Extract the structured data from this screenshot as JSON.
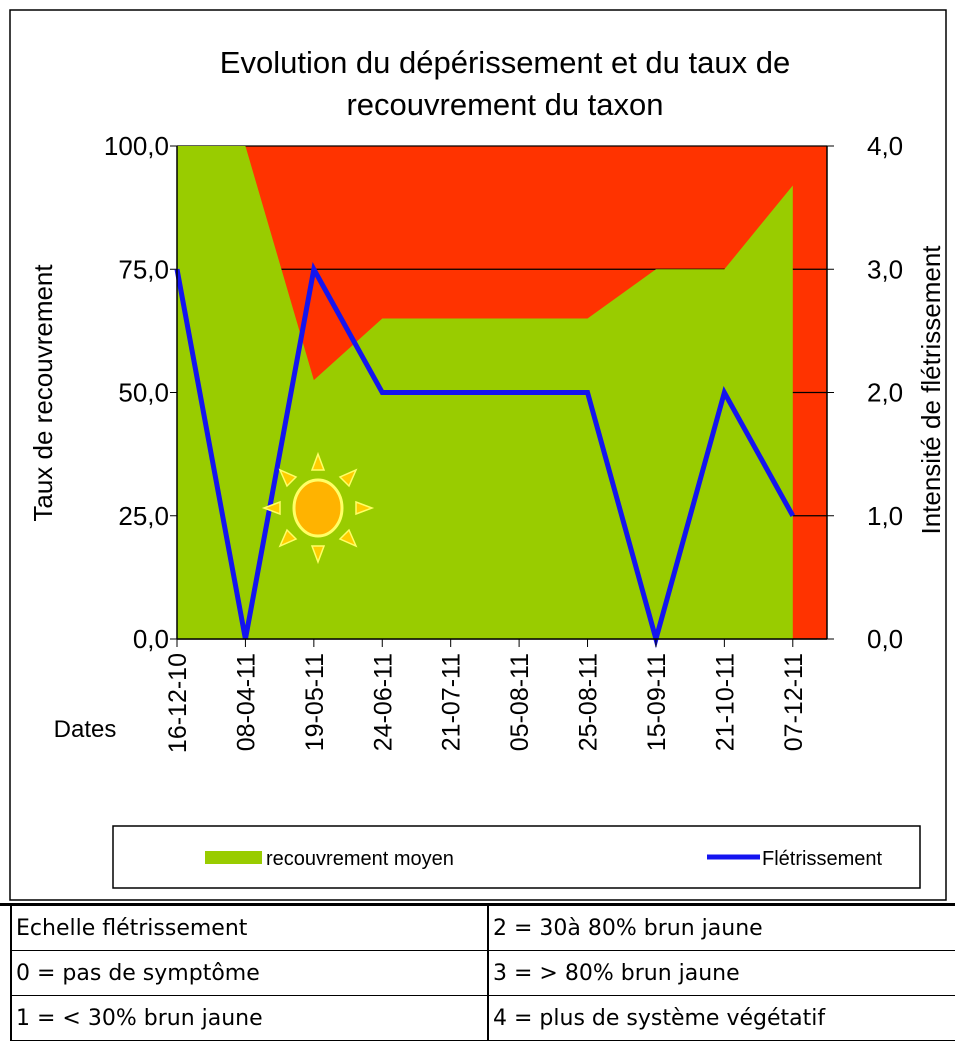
{
  "chart_data": {
    "type": "area_line",
    "title": [
      "Evolution du dépérissement et du taux de",
      "recouvrement du taxon"
    ],
    "ylabel": "Taux de recouvrement",
    "y2label": "Intensité de flétrissement",
    "xlabel": "Dates",
    "categories": [
      "16-12-10",
      "08-04-11",
      "19-05-11",
      "24-06-11",
      "21-07-11",
      "05-08-11",
      "25-08-11",
      "15-09-11",
      "21-10-11",
      "07-12-11"
    ],
    "series": [
      {
        "name": "recouvrement moyen",
        "color": "#99cc00",
        "kind": "area",
        "values": [
          100,
          100,
          52.5,
          65,
          65,
          65,
          65,
          75,
          75,
          92
        ]
      },
      {
        "name": "Flétrissement",
        "color": "#1414f0",
        "kind": "line",
        "axis": "y2",
        "values": [
          3,
          0,
          3,
          2,
          2,
          2,
          2,
          0,
          2,
          1
        ]
      }
    ],
    "plot_background": "#ff3300",
    "ylim": [
      0,
      100
    ],
    "yticks": [
      {
        "value": 0,
        "label": "0,0"
      },
      {
        "value": 25,
        "label": "25,0"
      },
      {
        "value": 50,
        "label": "50,0"
      },
      {
        "value": 75,
        "label": "75,0"
      },
      {
        "value": 100,
        "label": "100,0"
      }
    ],
    "y2lim": [
      0,
      4
    ],
    "y2ticks": [
      {
        "value": 0,
        "label": "0,0"
      },
      {
        "value": 1,
        "label": "1,0"
      },
      {
        "value": 2,
        "label": "2,0"
      },
      {
        "value": 3,
        "label": "3,0"
      },
      {
        "value": 4,
        "label": "4,0"
      }
    ],
    "grid": true,
    "legend": "bottom"
  },
  "table": {
    "rows": [
      [
        "Echelle flétrissement",
        "2 = 30à 80% brun jaune"
      ],
      [
        "0 = pas de symptôme",
        "3 = > 80% brun jaune"
      ],
      [
        "1 = < 30% brun jaune",
        "4 = plus de système végétatif"
      ]
    ]
  }
}
